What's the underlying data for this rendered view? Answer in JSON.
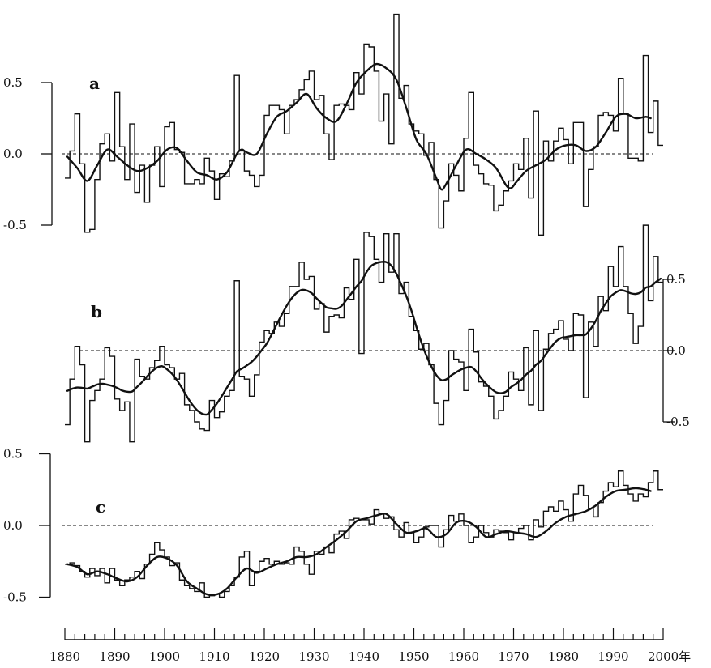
{
  "chart_data": [
    {
      "type": "line",
      "panel_label": "a",
      "axis_side": "left",
      "ylim": [
        -0.5,
        0.5
      ],
      "yticks": [
        "0.5",
        "0.0",
        "-0.5"
      ],
      "reference_line": 0.0,
      "x_start": 1880,
      "annual": [
        -0.17,
        0.02,
        0.28,
        -0.07,
        -0.55,
        -0.53,
        -0.18,
        0.07,
        0.14,
        -0.05,
        0.43,
        0.05,
        -0.18,
        0.21,
        -0.27,
        -0.08,
        -0.34,
        -0.08,
        0.05,
        -0.23,
        0.19,
        0.22,
        0.03,
        0.01,
        -0.21,
        -0.21,
        -0.18,
        -0.21,
        -0.03,
        -0.12,
        -0.32,
        -0.14,
        -0.16,
        -0.05,
        0.55,
        0.02,
        -0.12,
        -0.15,
        -0.23,
        -0.15,
        0.27,
        0.34,
        0.34,
        0.31,
        0.14,
        0.34,
        0.38,
        0.45,
        0.52,
        0.58,
        0.38,
        0.41,
        0.14,
        -0.04,
        0.34,
        0.35,
        0.34,
        0.31,
        0.57,
        0.42,
        0.77,
        0.75,
        0.58,
        0.23,
        0.42,
        0.07,
        0.98,
        0.39,
        0.48,
        0.21,
        0.16,
        0.14,
        -0.01,
        0.08,
        -0.18,
        -0.52,
        -0.33,
        -0.07,
        -0.15,
        -0.26,
        0.11,
        0.43,
        -0.08,
        -0.14,
        -0.21,
        -0.22,
        -0.4,
        -0.36,
        -0.26,
        -0.19,
        -0.07,
        -0.11,
        0.11,
        -0.31,
        0.3,
        -0.57,
        0.09,
        -0.05,
        0.09,
        0.18,
        0.1,
        -0.07,
        0.22,
        0.22,
        -0.37,
        -0.11,
        0.05,
        0.27,
        0.29,
        0.27,
        0.16,
        0.53,
        0.28,
        -0.03,
        -0.03,
        -0.05,
        0.69,
        0.15,
        0.37,
        0.06
      ],
      "smoothed": [
        [
          1880,
          -0.02
        ],
        [
          1882,
          -0.1
        ],
        [
          1884,
          -0.19
        ],
        [
          1886,
          -0.08
        ],
        [
          1888,
          0.03
        ],
        [
          1890,
          -0.02
        ],
        [
          1892,
          -0.08
        ],
        [
          1894,
          -0.12
        ],
        [
          1896,
          -0.1
        ],
        [
          1898,
          -0.05
        ],
        [
          1900,
          0.03
        ],
        [
          1902,
          0.04
        ],
        [
          1904,
          -0.05
        ],
        [
          1906,
          -0.13
        ],
        [
          1908,
          -0.15
        ],
        [
          1910,
          -0.18
        ],
        [
          1912,
          -0.13
        ],
        [
          1914,
          0.0
        ],
        [
          1915,
          0.03
        ],
        [
          1916,
          0.01
        ],
        [
          1918,
          0.0
        ],
        [
          1920,
          0.14
        ],
        [
          1922,
          0.26
        ],
        [
          1924,
          0.3
        ],
        [
          1926,
          0.36
        ],
        [
          1928,
          0.42
        ],
        [
          1930,
          0.32
        ],
        [
          1932,
          0.25
        ],
        [
          1934,
          0.23
        ],
        [
          1936,
          0.35
        ],
        [
          1938,
          0.5
        ],
        [
          1940,
          0.58
        ],
        [
          1942,
          0.63
        ],
        [
          1944,
          0.6
        ],
        [
          1946,
          0.52
        ],
        [
          1948,
          0.32
        ],
        [
          1950,
          0.1
        ],
        [
          1952,
          0.0
        ],
        [
          1954,
          -0.17
        ],
        [
          1955,
          -0.25
        ],
        [
          1956,
          -0.21
        ],
        [
          1958,
          -0.08
        ],
        [
          1960,
          0.03
        ],
        [
          1962,
          0.0
        ],
        [
          1964,
          -0.04
        ],
        [
          1966,
          -0.1
        ],
        [
          1968,
          -0.22
        ],
        [
          1969,
          -0.24
        ],
        [
          1970,
          -0.2
        ],
        [
          1972,
          -0.12
        ],
        [
          1974,
          -0.08
        ],
        [
          1976,
          -0.04
        ],
        [
          1978,
          0.03
        ],
        [
          1980,
          0.06
        ],
        [
          1982,
          0.06
        ],
        [
          1984,
          0.02
        ],
        [
          1986,
          0.05
        ],
        [
          1988,
          0.15
        ],
        [
          1990,
          0.26
        ],
        [
          1992,
          0.28
        ],
        [
          1994,
          0.25
        ],
        [
          1996,
          0.26
        ],
        [
          1997,
          0.25
        ]
      ]
    },
    {
      "type": "line",
      "panel_label": "b",
      "axis_side": "right",
      "ylim": [
        -0.5,
        0.5
      ],
      "yticks": [
        "0.5",
        "0.0",
        "-0.5"
      ],
      "reference_line": 0.0,
      "x_start": 1880,
      "annual": [
        -0.52,
        -0.2,
        0.03,
        -0.1,
        -0.64,
        -0.35,
        -0.28,
        -0.2,
        0.02,
        -0.04,
        -0.34,
        -0.42,
        -0.36,
        -0.64,
        -0.06,
        -0.18,
        -0.2,
        -0.12,
        -0.07,
        0.03,
        -0.1,
        -0.12,
        -0.2,
        -0.16,
        -0.38,
        -0.42,
        -0.5,
        -0.55,
        -0.56,
        -0.35,
        -0.47,
        -0.43,
        -0.32,
        -0.28,
        0.49,
        -0.18,
        -0.2,
        -0.32,
        -0.17,
        0.06,
        0.14,
        0.12,
        0.2,
        0.17,
        0.26,
        0.45,
        0.45,
        0.62,
        0.5,
        0.52,
        0.29,
        0.33,
        0.13,
        0.24,
        0.25,
        0.23,
        0.44,
        0.36,
        0.64,
        -0.02,
        0.83,
        0.8,
        0.64,
        0.48,
        0.82,
        0.55,
        0.82,
        0.4,
        0.48,
        0.24,
        0.14,
        0.01,
        0.05,
        -0.1,
        -0.37,
        -0.52,
        -0.35,
        0.0,
        -0.06,
        -0.08,
        -0.28,
        0.15,
        -0.01,
        -0.22,
        -0.25,
        -0.32,
        -0.48,
        -0.42,
        -0.32,
        -0.15,
        -0.2,
        -0.28,
        0.02,
        -0.38,
        0.14,
        -0.42,
        0.01,
        0.12,
        0.15,
        0.21,
        0.08,
        0.0,
        0.26,
        0.25,
        -0.33,
        0.2,
        0.03,
        0.38,
        0.28,
        0.59,
        0.45,
        0.73,
        0.45,
        0.26,
        0.05,
        0.17,
        0.88,
        0.35,
        0.66,
        0.48
      ]
    },
    {
      "type": "line",
      "panel_label": "c",
      "axis_side": "left",
      "ylim": [
        -0.5,
        0.5
      ],
      "yticks": [
        "0.5",
        "0.0",
        "-0.5"
      ],
      "reference_line": 0.0,
      "x_start": 1880,
      "annual": [
        -0.27,
        -0.26,
        -0.28,
        -0.32,
        -0.36,
        -0.3,
        -0.35,
        -0.3,
        -0.4,
        -0.3,
        -0.38,
        -0.42,
        -0.38,
        -0.36,
        -0.32,
        -0.37,
        -0.27,
        -0.2,
        -0.12,
        -0.17,
        -0.22,
        -0.28,
        -0.26,
        -0.38,
        -0.42,
        -0.44,
        -0.46,
        -0.4,
        -0.5,
        -0.49,
        -0.48,
        -0.5,
        -0.46,
        -0.42,
        -0.36,
        -0.22,
        -0.18,
        -0.42,
        -0.32,
        -0.25,
        -0.23,
        -0.27,
        -0.25,
        -0.27,
        -0.26,
        -0.27,
        -0.15,
        -0.18,
        -0.27,
        -0.34,
        -0.18,
        -0.2,
        -0.15,
        -0.19,
        -0.06,
        -0.04,
        -0.09,
        0.04,
        0.05,
        0.04,
        0.04,
        0.01,
        0.11,
        0.08,
        0.05,
        0.06,
        -0.03,
        -0.08,
        0.02,
        -0.05,
        -0.12,
        -0.08,
        -0.01,
        0.0,
        0.0,
        -0.15,
        -0.03,
        0.07,
        0.03,
        0.08,
        0.0,
        -0.12,
        -0.08,
        0.0,
        -0.05,
        -0.08,
        -0.03,
        -0.04,
        -0.05,
        -0.1,
        -0.05,
        -0.02,
        0.0,
        -0.1,
        0.04,
        -0.01,
        0.1,
        0.13,
        0.1,
        0.17,
        0.11,
        0.03,
        0.22,
        0.28,
        0.21,
        0.12,
        0.06,
        0.16,
        0.24,
        0.3,
        0.27,
        0.38,
        0.28,
        0.22,
        0.17,
        0.22,
        0.2,
        0.3,
        0.38,
        0.25
      ],
      "smoothed": [
        [
          1880,
          -0.27
        ],
        [
          1882,
          -0.29
        ],
        [
          1884,
          -0.34
        ],
        [
          1886,
          -0.32
        ],
        [
          1888,
          -0.34
        ],
        [
          1890,
          -0.37
        ],
        [
          1892,
          -0.39
        ],
        [
          1894,
          -0.36
        ],
        [
          1896,
          -0.28
        ],
        [
          1898,
          -0.22
        ],
        [
          1900,
          -0.23
        ],
        [
          1902,
          -0.28
        ],
        [
          1904,
          -0.39
        ],
        [
          1906,
          -0.44
        ],
        [
          1908,
          -0.48
        ],
        [
          1910,
          -0.48
        ],
        [
          1912,
          -0.44
        ],
        [
          1914,
          -0.36
        ],
        [
          1916,
          -0.3
        ],
        [
          1918,
          -0.33
        ],
        [
          1920,
          -0.3
        ],
        [
          1922,
          -0.27
        ],
        [
          1924,
          -0.25
        ],
        [
          1926,
          -0.22
        ],
        [
          1928,
          -0.22
        ],
        [
          1930,
          -0.2
        ],
        [
          1932,
          -0.15
        ],
        [
          1934,
          -0.1
        ],
        [
          1936,
          -0.04
        ],
        [
          1938,
          0.03
        ],
        [
          1940,
          0.05
        ],
        [
          1942,
          0.07
        ],
        [
          1944,
          0.08
        ],
        [
          1946,
          0.01
        ],
        [
          1948,
          -0.05
        ],
        [
          1950,
          -0.04
        ],
        [
          1952,
          -0.02
        ],
        [
          1954,
          -0.08
        ],
        [
          1956,
          -0.06
        ],
        [
          1958,
          0.02
        ],
        [
          1960,
          0.03
        ],
        [
          1962,
          -0.01
        ],
        [
          1964,
          -0.08
        ],
        [
          1966,
          -0.06
        ],
        [
          1968,
          -0.04
        ],
        [
          1970,
          -0.05
        ],
        [
          1972,
          -0.06
        ],
        [
          1974,
          -0.08
        ],
        [
          1976,
          -0.04
        ],
        [
          1978,
          0.02
        ],
        [
          1980,
          0.06
        ],
        [
          1982,
          0.08
        ],
        [
          1984,
          0.1
        ],
        [
          1986,
          0.14
        ],
        [
          1988,
          0.2
        ],
        [
          1990,
          0.24
        ],
        [
          1992,
          0.25
        ],
        [
          1994,
          0.26
        ],
        [
          1996,
          0.25
        ],
        [
          1997,
          0.24
        ]
      ]
    }
  ],
  "x_axis": {
    "min": 1880,
    "max": 2000,
    "tick_labels": [
      "1880",
      "1890",
      "1900",
      "1910",
      "1920",
      "1930",
      "1940",
      "1950",
      "1960",
      "1970",
      "1980",
      "1990",
      "2000年"
    ]
  }
}
